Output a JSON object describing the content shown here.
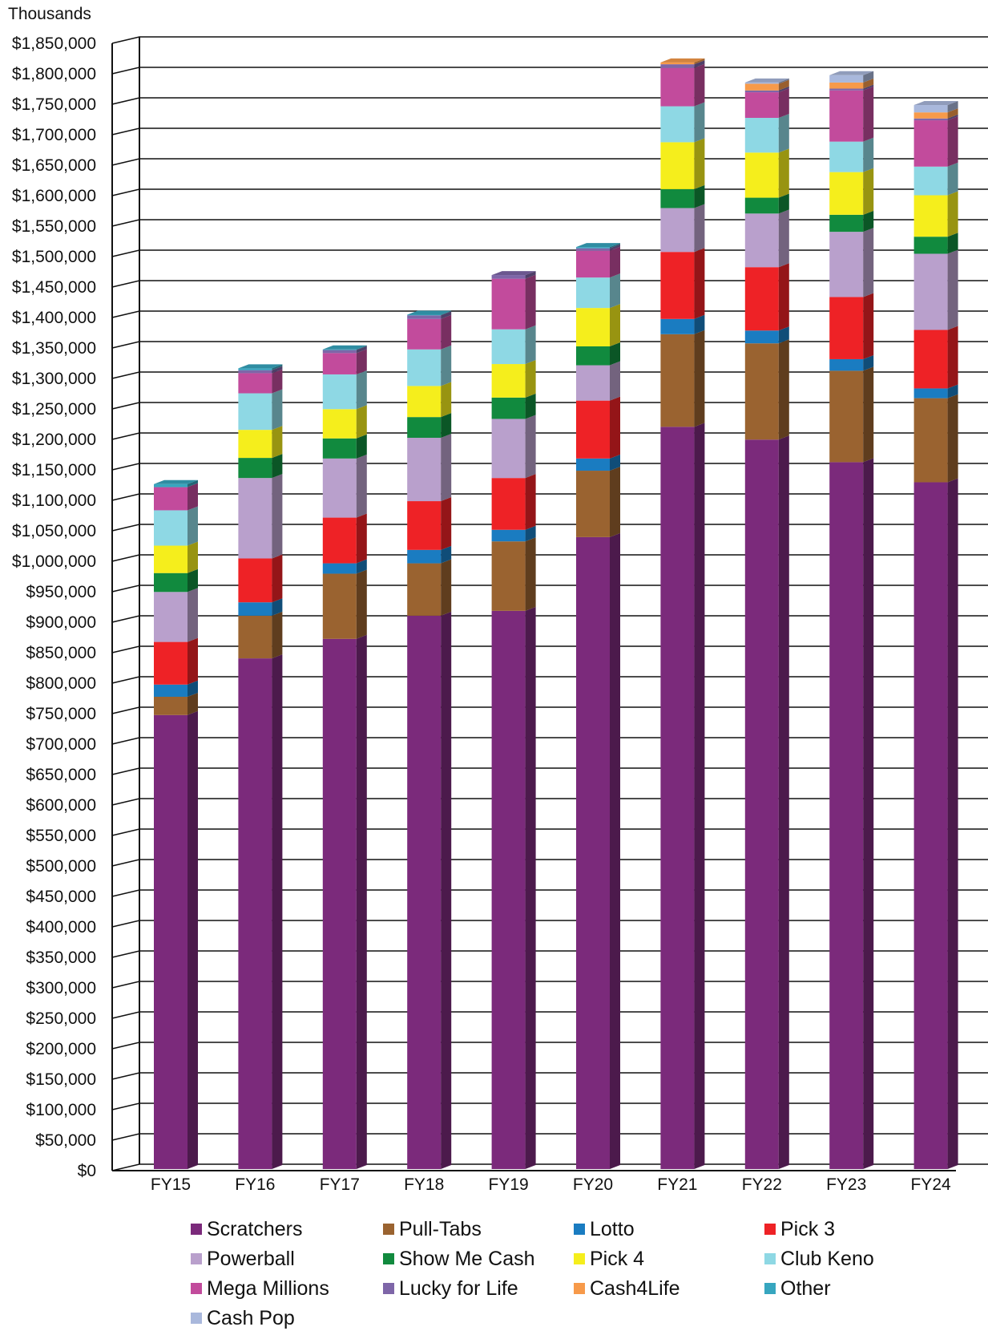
{
  "chart_data": {
    "type": "bar",
    "stacked": true,
    "unit_label": "Thousands",
    "title": "",
    "xlabel": "",
    "ylabel": "",
    "ylim": [
      0,
      1850000
    ],
    "ytick_step": 50000,
    "ytick_labels": [
      "$0",
      "$50,000",
      "$100,000",
      "$150,000",
      "$200,000",
      "$250,000",
      "$300,000",
      "$350,000",
      "$400,000",
      "$450,000",
      "$500,000",
      "$550,000",
      "$600,000",
      "$650,000",
      "$700,000",
      "$750,000",
      "$800,000",
      "$850,000",
      "$900,000",
      "$950,000",
      "$1,000,000",
      "$1,050,000",
      "$1,100,000",
      "$1,150,000",
      "$1,200,000",
      "$1,250,000",
      "$1,300,000",
      "$1,350,000",
      "$1,400,000",
      "$1,450,000",
      "$1,500,000",
      "$1,550,000",
      "$1,600,000",
      "$1,650,000",
      "$1,700,000",
      "$1,750,000",
      "$1,800,000",
      "$1,850,000"
    ],
    "grid": true,
    "legend_position": "bottom",
    "categories": [
      "FY15",
      "FY16",
      "FY17",
      "FY18",
      "FY19",
      "FY20",
      "FY21",
      "FY22",
      "FY23",
      "FY24"
    ],
    "series": [
      {
        "name": "Scratchers",
        "color": "#7b2a7b",
        "values": [
          745000,
          838000,
          870000,
          908000,
          916000,
          1037000,
          1218000,
          1197000,
          1160000,
          1127000
        ]
      },
      {
        "name": "Pull-Tabs",
        "color": "#9a6330",
        "values": [
          30000,
          70000,
          107000,
          86000,
          114000,
          109000,
          152000,
          158000,
          150000,
          138000
        ]
      },
      {
        "name": "Lotto",
        "color": "#1a7cc1",
        "values": [
          20000,
          22000,
          17000,
          22000,
          19000,
          20000,
          25000,
          21000,
          19000,
          16000
        ]
      },
      {
        "name": "Pick 3",
        "color": "#ee2226",
        "values": [
          70000,
          72000,
          75000,
          80000,
          85000,
          95000,
          110000,
          104000,
          102000,
          96000
        ]
      },
      {
        "name": "Powerball",
        "color": "#b9a0cc",
        "values": [
          82000,
          132000,
          97000,
          104000,
          97000,
          58000,
          72000,
          88000,
          107000,
          125000
        ]
      },
      {
        "name": "Show Me Cash",
        "color": "#118a3e",
        "values": [
          31000,
          33000,
          33000,
          34000,
          35000,
          31000,
          31000,
          26000,
          28000,
          28000
        ]
      },
      {
        "name": "Pick 4",
        "color": "#f5ee1c",
        "values": [
          45000,
          46000,
          48000,
          51000,
          55000,
          63000,
          77000,
          74000,
          70000,
          68000
        ]
      },
      {
        "name": "Club Keno",
        "color": "#8ed8e4",
        "values": [
          58000,
          60000,
          57000,
          60000,
          57000,
          50000,
          59000,
          57000,
          50000,
          47000
        ]
      },
      {
        "name": "Mega Millions",
        "color": "#c24b9c",
        "values": [
          38000,
          33000,
          35000,
          50000,
          83000,
          44000,
          63000,
          42000,
          84000,
          76000
        ]
      },
      {
        "name": "Lucky for Life",
        "color": "#7e66a8",
        "values": [
          0,
          5000,
          5000,
          6000,
          6000,
          4000,
          6000,
          3000,
          3000,
          3000
        ]
      },
      {
        "name": "Cash4Life",
        "color": "#f79a4a",
        "values": [
          0,
          0,
          0,
          0,
          0,
          0,
          3000,
          11000,
          10000,
          10000
        ]
      },
      {
        "name": "Other",
        "color": "#37a6bf",
        "values": [
          5000,
          3000,
          1000,
          1000,
          0,
          2000,
          0,
          0,
          0,
          0
        ]
      },
      {
        "name": "Cash Pop",
        "color": "#a9b8dc",
        "values": [
          0,
          0,
          0,
          0,
          0,
          0,
          0,
          2000,
          12000,
          12000
        ]
      }
    ]
  }
}
